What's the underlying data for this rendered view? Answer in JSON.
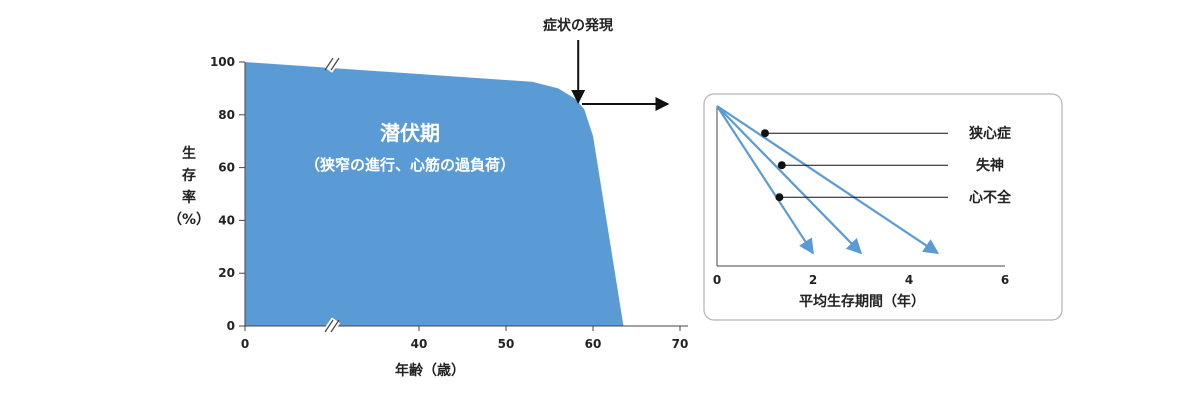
{
  "chart_data": [
    {
      "type": "area",
      "xlabel": "年齢（歳）",
      "ylabel_lines": [
        "生",
        "存",
        "率",
        "（%）"
      ],
      "xlim": [
        0,
        70
      ],
      "ylim": [
        0,
        100
      ],
      "x_ticks": [
        0,
        40,
        50,
        60,
        70
      ],
      "y_ticks": [
        0,
        20,
        40,
        60,
        80,
        100
      ],
      "axis_break": true,
      "grid": false,
      "fill_color": "#5b9bd5",
      "series": [
        {
          "x": [
            0,
            53,
            56,
            58,
            59,
            60,
            63.5
          ],
          "y": [
            100,
            92.5,
            90,
            86,
            82,
            72,
            0
          ]
        }
      ],
      "area_label": {
        "title": "潜伏期",
        "subtitle": "（狭窄の進行、心筋の過負荷）"
      },
      "annotation": {
        "text": "症状の発現",
        "at_x": 58.3,
        "at_y": 83.5
      }
    },
    {
      "type": "line",
      "xlabel": "平均生存期間（年）",
      "xlim": [
        0,
        6
      ],
      "ylim": [
        0,
        100
      ],
      "x_ticks": [
        0,
        2,
        4,
        6
      ],
      "line_color": "#5b9bd5",
      "series": [
        {
          "name": "狭心症",
          "x": [
            0,
            1,
            4.6
          ],
          "y": [
            100,
            83,
            8
          ]
        },
        {
          "name": "失神",
          "x": [
            0,
            1.35,
            3
          ],
          "y": [
            100,
            63,
            8
          ]
        },
        {
          "name": "心不全",
          "x": [
            0,
            1.3,
            2
          ],
          "y": [
            100,
            43,
            8
          ]
        }
      ]
    }
  ]
}
